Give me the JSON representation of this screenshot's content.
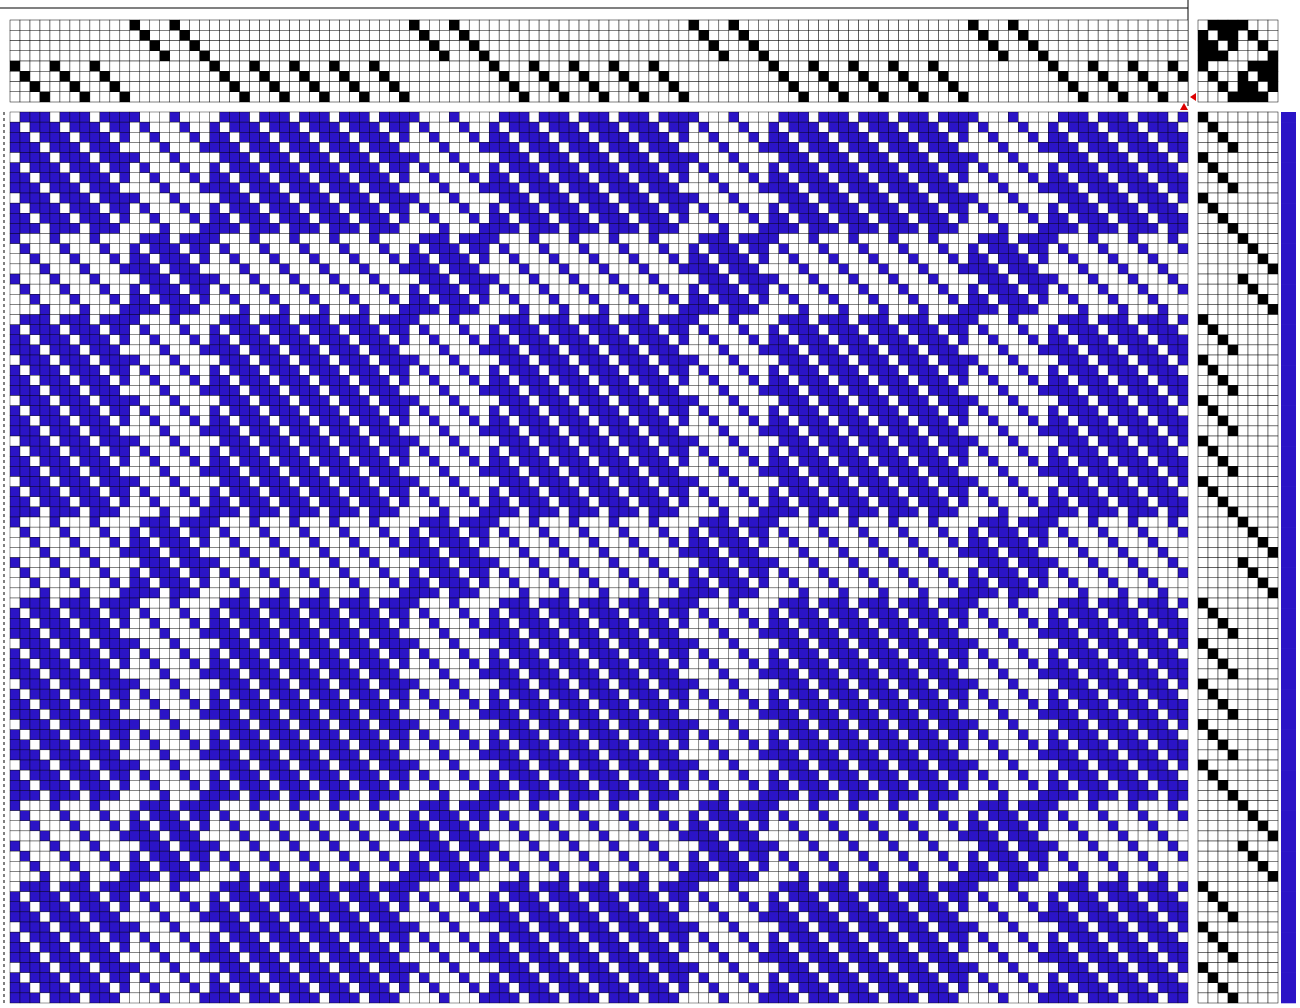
{
  "draft": {
    "warp_color": "#ffffff",
    "weft_color": "#2b14c6",
    "mark_color": "#000000",
    "threading": [
      5,
      6,
      7,
      8,
      5,
      6,
      7,
      8,
      5,
      6,
      7,
      8,
      1,
      2,
      3,
      4,
      1,
      2,
      3,
      4,
      5,
      6,
      7,
      8,
      5,
      6,
      7,
      8,
      5,
      6,
      7,
      8,
      5,
      6,
      7,
      8,
      5,
      6,
      7,
      8,
      1,
      2,
      3,
      4,
      1,
      2,
      3,
      4,
      5,
      6,
      7,
      8,
      5,
      6,
      7,
      8,
      5,
      6,
      7,
      8,
      5,
      6,
      7,
      8,
      5,
      6,
      7,
      8,
      1,
      2,
      3,
      4,
      1,
      2,
      3,
      4,
      5,
      6,
      7,
      8,
      5,
      6,
      7,
      8,
      5,
      6,
      7,
      8,
      5,
      6,
      7,
      8,
      5,
      6,
      7,
      8,
      1,
      2,
      3,
      4,
      1,
      2,
      3,
      4,
      5,
      6,
      7,
      8,
      5,
      6,
      7,
      8,
      5,
      6,
      7,
      8,
      5,
      6
    ],
    "treadling": [
      1,
      2,
      3,
      4,
      1,
      2,
      3,
      4,
      1,
      2,
      3,
      4,
      5,
      6,
      7,
      8,
      5,
      6,
      7,
      8,
      1,
      2,
      3,
      4,
      1,
      2,
      3,
      4,
      1,
      2,
      3,
      4,
      1,
      2,
      3,
      4,
      1,
      2,
      3,
      4,
      5,
      6,
      7,
      8,
      5,
      6,
      7,
      8,
      1,
      2,
      3,
      4,
      1,
      2,
      3,
      4,
      1,
      2,
      3,
      4,
      1,
      2,
      3,
      4,
      1,
      2,
      3,
      4,
      5,
      6,
      7,
      8,
      5,
      6,
      7,
      8,
      1,
      2,
      3,
      4,
      1,
      2,
      3,
      4,
      1,
      2,
      3,
      4
    ],
    "tieup": [
      [
        0,
        1,
        1,
        1,
        1,
        0,
        0,
        0
      ],
      [
        1,
        0,
        1,
        1,
        0,
        1,
        0,
        0
      ],
      [
        1,
        1,
        0,
        1,
        0,
        0,
        1,
        0
      ],
      [
        1,
        1,
        1,
        0,
        0,
        0,
        0,
        1
      ],
      [
        1,
        0,
        0,
        0,
        0,
        1,
        1,
        1
      ],
      [
        0,
        1,
        0,
        0,
        1,
        0,
        1,
        1
      ],
      [
        0,
        0,
        1,
        0,
        1,
        1,
        0,
        1
      ],
      [
        0,
        0,
        0,
        1,
        1,
        1,
        1,
        0
      ]
    ]
  }
}
